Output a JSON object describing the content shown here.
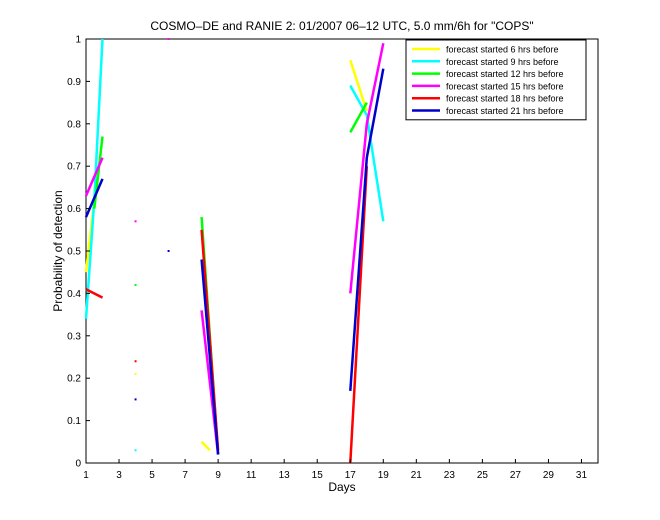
{
  "chart_data": {
    "type": "line",
    "title": "COSMO–DE and RANIE 2: 01/2007 06–12 UTC, 5.0 mm/6h for \"COPS\"",
    "xlabel": "Days",
    "ylabel": "Probability of detection",
    "xlim": [
      1,
      32
    ],
    "ylim": [
      0,
      1
    ],
    "xticks": [
      1,
      3,
      5,
      7,
      9,
      11,
      13,
      15,
      17,
      19,
      21,
      23,
      25,
      27,
      29,
      31
    ],
    "yticks": [
      0,
      0.1,
      0.2,
      0.3,
      0.4,
      0.5,
      0.6,
      0.7,
      0.8,
      0.9,
      1
    ],
    "ytick_labels": [
      "0",
      "0.1",
      "0.2",
      "0.3",
      "0.4",
      "0.5",
      "0.6",
      "0.7",
      "0.8",
      "0.9",
      "1"
    ],
    "grid": false,
    "legend_position": "top-right",
    "series": [
      {
        "name": "forecast started  6 hrs before",
        "color": "#ffff00",
        "segments": [
          [
            [
              1,
              0.45
            ],
            [
              1.5,
              0.62
            ]
          ],
          [
            [
              8,
              0.05
            ],
            [
              8.5,
              0.03
            ]
          ],
          [
            [
              17,
              0.95
            ],
            [
              18,
              0.83
            ]
          ]
        ],
        "points": [
          [
            4,
            0.21
          ]
        ]
      },
      {
        "name": "forecast started  9 hrs before",
        "color": "#00ffff",
        "segments": [
          [
            [
              1,
              0.34
            ],
            [
              1.5,
              0.62
            ],
            [
              2,
              1.0
            ]
          ],
          [
            [
              17,
              0.89
            ],
            [
              18,
              0.82
            ],
            [
              19,
              0.57
            ]
          ]
        ],
        "points": [
          [
            4,
            0.03
          ]
        ]
      },
      {
        "name": "forecast started 12 hrs before",
        "color": "#00ff00",
        "segments": [
          [
            [
              1.5,
              0.6
            ],
            [
              2,
              0.77
            ]
          ],
          [
            [
              8,
              0.58
            ],
            [
              9,
              0.02
            ]
          ],
          [
            [
              17,
              0.78
            ],
            [
              18,
              0.85
            ]
          ]
        ],
        "points": [
          [
            4,
            0.42
          ]
        ]
      },
      {
        "name": "forecast started 15 hrs before",
        "color": "#ff00ff",
        "segments": [
          [
            [
              1,
              0.63
            ],
            [
              2,
              0.72
            ]
          ],
          [
            [
              8,
              0.36
            ],
            [
              9,
              0.02
            ]
          ],
          [
            [
              17,
              0.4
            ],
            [
              18,
              0.8
            ],
            [
              19,
              0.99
            ]
          ]
        ],
        "points": [
          [
            4,
            0.57
          ],
          [
            6,
            1.0
          ]
        ]
      },
      {
        "name": "forecast started 18 hrs before",
        "color": "#ff0000",
        "segments": [
          [
            [
              1,
              0.41
            ],
            [
              2,
              0.39
            ]
          ],
          [
            [
              8,
              0.55
            ],
            [
              9,
              0.03
            ]
          ],
          [
            [
              17,
              0.0
            ],
            [
              18,
              0.7
            ]
          ]
        ],
        "points": [
          [
            4,
            0.24
          ]
        ]
      },
      {
        "name": "forecast started 21 hrs before",
        "color": "#0000cc",
        "segments": [
          [
            [
              1,
              0.58
            ],
            [
              2,
              0.67
            ]
          ],
          [
            [
              8,
              0.48
            ],
            [
              9,
              0.02
            ]
          ],
          [
            [
              17,
              0.17
            ],
            [
              18,
              0.72
            ],
            [
              19,
              0.93
            ]
          ]
        ],
        "points": [
          [
            4,
            0.15
          ],
          [
            6,
            0.5
          ]
        ]
      }
    ]
  }
}
